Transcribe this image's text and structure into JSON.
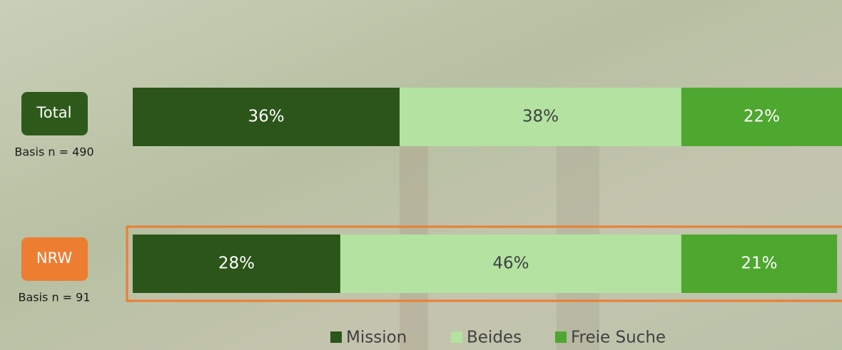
{
  "chart_data": {
    "type": "stacked_barh",
    "categories": [
      "Total",
      "NRW"
    ],
    "basis": [
      "Basis n = 490",
      "Basis n = 91"
    ],
    "category_colors": [
      "#2d5a1b",
      "#ed7d31"
    ],
    "highlight_color": "#ed7d31",
    "series": [
      {
        "name": "Mission",
        "color": "#2b5519",
        "text_color": "#ffffff",
        "values": [
          36,
          28
        ],
        "value_labels": [
          "36%",
          "28%"
        ]
      },
      {
        "name": "Beides",
        "color": "#b3e2a1",
        "text_color": "#404040",
        "values": [
          38,
          46
        ],
        "value_labels": [
          "38%",
          "46%"
        ]
      },
      {
        "name": "Freie Suche",
        "color": "#4ea72e",
        "text_color": "#ffffff",
        "values": [
          22,
          21
        ],
        "value_labels": [
          "22%",
          "21%"
        ]
      }
    ],
    "xlim": [
      0,
      100
    ]
  }
}
